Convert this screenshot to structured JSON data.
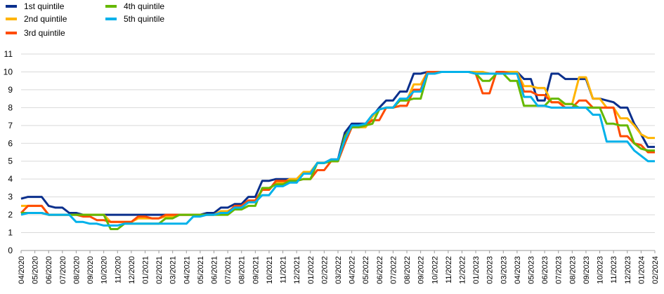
{
  "chart_data": {
    "type": "line",
    "title": "",
    "xlabel": "",
    "ylabel": "",
    "ylim": [
      0,
      11
    ],
    "yticks": [
      0,
      1,
      2,
      3,
      4,
      5,
      6,
      7,
      8,
      9,
      10,
      11
    ],
    "grid": "horizontal",
    "legend_position": "top-left",
    "categories": [
      "04/2020",
      "05/2020",
      "06/2020",
      "07/2020",
      "08/2020",
      "09/2020",
      "10/2020",
      "11/2020",
      "12/2020",
      "01/2021",
      "02/2021",
      "03/2021",
      "04/2021",
      "05/2021",
      "06/2021",
      "07/2021",
      "08/2021",
      "09/2021",
      "10/2021",
      "11/2021",
      "12/2021",
      "01/2022",
      "02/2022",
      "03/2022",
      "04/2022",
      "05/2022",
      "06/2022",
      "07/2022",
      "08/2022",
      "09/2022",
      "10/2022",
      "11/2022",
      "12/2022",
      "01/2023",
      "02/2023",
      "03/2023",
      "04/2023",
      "05/2023",
      "06/2023",
      "07/2023",
      "08/2023",
      "09/2023",
      "10/2023",
      "11/2023",
      "12/2023",
      "01/2024",
      "02/2024"
    ],
    "x": [
      0,
      0.5,
      1,
      1.5,
      2,
      2.5,
      3,
      3.5,
      4,
      4.5,
      5,
      5.5,
      6,
      6.5,
      7,
      7.5,
      8,
      8.5,
      9,
      9.5,
      10,
      10.5,
      11,
      11.5,
      12,
      12.5,
      13,
      13.5,
      14,
      14.5,
      15,
      15.5,
      16,
      16.5,
      17,
      17.5,
      18,
      18.5,
      19,
      19.5,
      20,
      20.5,
      21,
      21.5,
      22,
      22.5,
      23,
      23.5,
      24,
      24.5,
      25,
      25.5,
      26,
      26.5,
      27,
      27.5,
      28,
      28.5,
      29,
      29.5,
      30,
      30.5,
      31,
      31.5,
      32,
      32.5,
      33,
      33.5,
      34,
      34.5,
      35,
      35.5,
      36,
      36.5,
      37,
      37.5,
      38,
      38.5,
      39,
      39.5,
      40,
      40.5,
      41,
      41.5,
      42,
      42.5,
      43,
      43.5,
      44,
      44.5,
      45,
      45.5,
      46
    ],
    "series": [
      {
        "name": "1st quintile",
        "color": "#0a2f8c",
        "values": [
          2.9,
          3.0,
          3.0,
          3.0,
          2.5,
          2.4,
          2.4,
          2.1,
          2.1,
          2.0,
          2.0,
          2.0,
          2.0,
          2.0,
          2.0,
          2.0,
          2.0,
          2.0,
          2.0,
          2.0,
          2.0,
          2.0,
          2.0,
          2.0,
          2.0,
          2.0,
          2.0,
          2.1,
          2.1,
          2.4,
          2.4,
          2.6,
          2.6,
          3.0,
          3.0,
          3.9,
          3.9,
          4.0,
          4.0,
          4.0,
          4.0,
          4.3,
          4.3,
          4.9,
          4.9,
          5.1,
          5.1,
          6.6,
          7.1,
          7.1,
          7.1,
          7.5,
          8.0,
          8.4,
          8.4,
          8.9,
          8.9,
          9.9,
          9.9,
          10.0,
          10.0,
          10.0,
          10.0,
          10.0,
          10.0,
          10.0,
          9.9,
          9.9,
          9.9,
          9.9,
          10.0,
          10.0,
          10.0,
          9.6,
          9.6,
          8.4,
          8.4,
          9.9,
          9.9,
          9.6,
          9.6,
          9.6,
          9.6,
          8.5,
          8.5,
          8.4,
          8.3,
          8.0,
          8.0,
          7.1,
          6.5,
          5.8,
          5.8
        ]
      },
      {
        "name": "2nd quintile",
        "color": "#ffb400",
        "values": [
          2.5,
          2.5,
          2.5,
          2.5,
          2.0,
          2.0,
          2.0,
          2.0,
          2.0,
          2.0,
          2.0,
          2.0,
          2.0,
          1.6,
          1.6,
          1.6,
          1.6,
          1.8,
          1.8,
          1.8,
          1.8,
          1.9,
          1.9,
          2.0,
          2.0,
          2.0,
          2.0,
          2.0,
          2.0,
          2.2,
          2.2,
          2.4,
          2.4,
          2.7,
          2.7,
          3.4,
          3.4,
          3.8,
          3.8,
          4.0,
          4.0,
          4.4,
          4.4,
          4.9,
          4.9,
          5.0,
          5.0,
          6.2,
          6.9,
          6.9,
          6.9,
          7.5,
          7.9,
          8.0,
          8.0,
          8.4,
          8.4,
          9.3,
          9.3,
          10.0,
          10.0,
          10.0,
          10.0,
          10.0,
          10.0,
          10.0,
          10.0,
          10.0,
          9.9,
          9.9,
          10.0,
          10.0,
          10.0,
          9.2,
          9.2,
          9.1,
          9.1,
          8.3,
          8.3,
          8.2,
          8.2,
          9.7,
          9.7,
          8.5,
          8.5,
          8.0,
          8.0,
          7.4,
          7.4,
          7.0,
          6.5,
          6.3,
          6.3
        ]
      },
      {
        "name": "3rd quintile",
        "color": "#ff4b00",
        "values": [
          2.1,
          2.5,
          2.5,
          2.5,
          2.0,
          2.0,
          2.0,
          2.0,
          2.0,
          1.9,
          1.9,
          1.7,
          1.7,
          1.6,
          1.6,
          1.6,
          1.6,
          1.9,
          1.9,
          1.8,
          1.8,
          2.0,
          2.0,
          2.0,
          2.0,
          2.0,
          2.0,
          2.0,
          2.0,
          2.1,
          2.1,
          2.5,
          2.5,
          2.8,
          2.8,
          3.4,
          3.4,
          3.9,
          3.9,
          3.9,
          3.9,
          4.0,
          4.0,
          4.5,
          4.5,
          5.0,
          5.0,
          6.0,
          6.9,
          6.9,
          7.0,
          7.3,
          7.3,
          8.0,
          8.0,
          8.1,
          8.1,
          9.0,
          9.0,
          10.0,
          10.0,
          10.0,
          10.0,
          10.0,
          10.0,
          10.0,
          9.9,
          8.8,
          8.8,
          10.0,
          10.0,
          9.9,
          9.9,
          8.9,
          8.9,
          8.7,
          8.7,
          8.3,
          8.3,
          8.0,
          8.0,
          8.4,
          8.4,
          8.0,
          8.0,
          8.0,
          8.0,
          6.4,
          6.4,
          6.0,
          5.9,
          5.5,
          5.5
        ]
      },
      {
        "name": "4th quintile",
        "color": "#65b800",
        "values": [
          2.1,
          2.1,
          2.1,
          2.1,
          2.0,
          2.0,
          2.0,
          2.0,
          2.0,
          2.0,
          2.0,
          2.0,
          2.0,
          1.2,
          1.2,
          1.5,
          1.5,
          1.5,
          1.5,
          1.5,
          1.5,
          1.8,
          1.8,
          2.0,
          2.0,
          2.0,
          2.0,
          2.0,
          2.0,
          2.0,
          2.0,
          2.3,
          2.3,
          2.5,
          2.5,
          3.5,
          3.5,
          3.7,
          3.7,
          3.9,
          3.9,
          4.0,
          4.0,
          4.9,
          4.9,
          5.0,
          5.0,
          6.4,
          6.9,
          6.9,
          7.0,
          7.1,
          7.9,
          8.0,
          8.0,
          8.4,
          8.4,
          8.5,
          8.5,
          9.9,
          9.9,
          10.0,
          10.0,
          10.0,
          10.0,
          10.0,
          9.9,
          9.5,
          9.5,
          9.9,
          9.9,
          9.5,
          9.5,
          8.1,
          8.1,
          8.1,
          8.1,
          8.5,
          8.5,
          8.2,
          8.2,
          8.0,
          8.0,
          8.0,
          8.0,
          7.1,
          7.1,
          7.0,
          7.0,
          6.0,
          5.7,
          5.6,
          5.6
        ]
      },
      {
        "name": "5th quintile",
        "color": "#00b1ea",
        "values": [
          2.0,
          2.1,
          2.1,
          2.1,
          2.0,
          2.0,
          2.0,
          2.0,
          1.6,
          1.6,
          1.5,
          1.5,
          1.4,
          1.4,
          1.4,
          1.5,
          1.5,
          1.5,
          1.5,
          1.5,
          1.5,
          1.5,
          1.5,
          1.5,
          1.5,
          1.9,
          1.9,
          2.0,
          2.0,
          2.1,
          2.1,
          2.4,
          2.4,
          2.7,
          2.7,
          3.1,
          3.1,
          3.6,
          3.6,
          3.8,
          3.8,
          4.3,
          4.3,
          4.9,
          4.9,
          5.1,
          5.1,
          6.2,
          7.0,
          7.0,
          7.1,
          7.6,
          7.9,
          8.0,
          8.0,
          8.5,
          8.5,
          8.9,
          8.9,
          9.9,
          9.9,
          10.0,
          10.0,
          10.0,
          10.0,
          10.0,
          9.9,
          9.9,
          9.9,
          9.9,
          9.9,
          9.9,
          9.9,
          8.6,
          8.6,
          8.1,
          8.1,
          8.0,
          8.0,
          8.0,
          8.0,
          8.0,
          8.0,
          7.6,
          7.6,
          6.1,
          6.1,
          6.1,
          6.1,
          5.6,
          5.3,
          5.0,
          5.0
        ]
      }
    ]
  }
}
